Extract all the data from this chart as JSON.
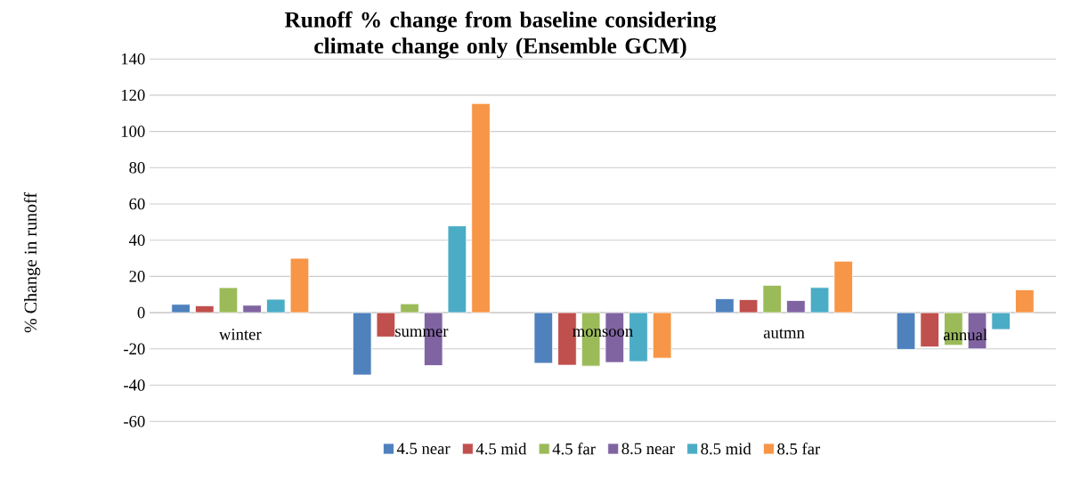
{
  "chart_data": {
    "type": "bar",
    "title": "Runoff % change from baseline considering climate change only (Ensemble GCM)",
    "ylabel": "% Change in runoff",
    "categories": [
      "winter",
      "summer",
      "monsoon",
      "autmn",
      "annual"
    ],
    "series": [
      {
        "name": "4.5 near",
        "color": "#4f81bd",
        "values": [
          4.6,
          -34.4,
          -27.9,
          7.7,
          -20.3
        ]
      },
      {
        "name": "4.5 mid",
        "color": "#c0504d",
        "values": [
          3.8,
          -13.4,
          -29,
          7.2,
          -18.9
        ]
      },
      {
        "name": "4.5 far",
        "color": "#9bbb59",
        "values": [
          13.8,
          4.9,
          -29.5,
          15.1,
          -18
        ]
      },
      {
        "name": "8.5 near",
        "color": "#8064a2",
        "values": [
          4.1,
          -29.2,
          -27.5,
          6.7,
          -20
        ]
      },
      {
        "name": "8.5 mid",
        "color": "#4bacc6",
        "values": [
          7.4,
          47.9,
          -27,
          13.9,
          -9.3
        ]
      },
      {
        "name": "8.5 far",
        "color": "#f79646",
        "values": [
          30,
          115.4,
          -25.1,
          28.4,
          12.6
        ]
      }
    ],
    "ylim": [
      -60,
      140
    ],
    "yticks": [
      -60,
      -40,
      -20,
      0,
      20,
      40,
      60,
      80,
      100,
      120,
      140
    ],
    "grid": "y",
    "legend": "bottom"
  }
}
